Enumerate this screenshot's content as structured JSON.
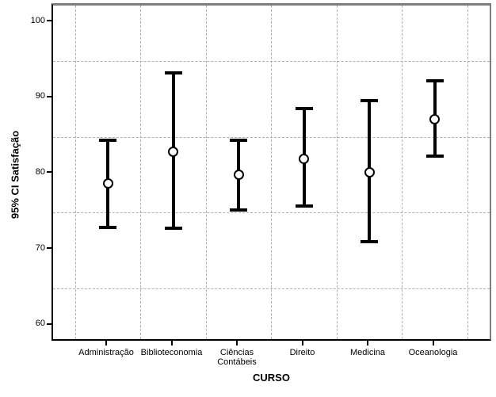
{
  "chart_data": {
    "type": "errorbar",
    "title": "",
    "xlabel": "CURSO",
    "ylabel": "95% CI Satisfação",
    "categories": [
      "Administração",
      "Biblioteconomia",
      "Ciências\nContábeis",
      "Direito",
      "Medicina",
      "Oceanologia"
    ],
    "series": [
      {
        "name": "95% CI Satisfação",
        "means": [
          78.8,
          83.0,
          80.0,
          82.1,
          80.3,
          87.3
        ],
        "lower": [
          73.0,
          72.9,
          75.3,
          75.9,
          71.2,
          82.5
        ],
        "upper": [
          84.5,
          93.4,
          84.5,
          88.7,
          89.8,
          92.4
        ]
      }
    ],
    "ylim": [
      57.8,
      102.3
    ],
    "yticks": [
      60,
      70,
      80,
      90,
      100
    ],
    "minor_gridlines_y": [
      65,
      75,
      85,
      95
    ],
    "grid": "dashed-minor-horizontal-and-category-boundaries",
    "legend_position": "none",
    "colors": {
      "bar": "#000000",
      "marker_fill": "#ffffff",
      "marker_edge": "#000000",
      "grid": "#b0b0b0",
      "frame_gray": "#7d7d7d",
      "axis_black": "#000000",
      "background": "#ffffff"
    }
  }
}
